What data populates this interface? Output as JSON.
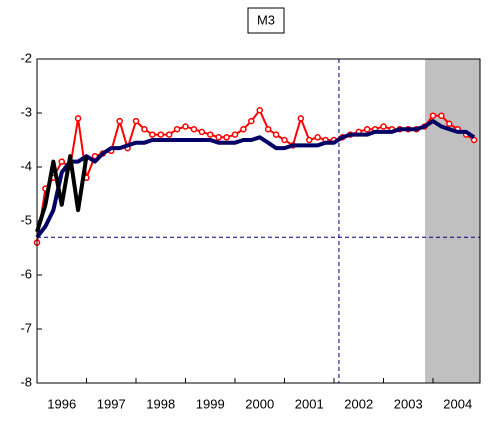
{
  "chart_data": {
    "type": "line",
    "title": "M3",
    "x": [
      1996.0,
      1996.17,
      1996.33,
      1996.5,
      1996.67,
      1996.83,
      1997.0,
      1997.17,
      1997.33,
      1997.5,
      1997.67,
      1997.83,
      1998.0,
      1998.17,
      1998.33,
      1998.5,
      1998.67,
      1998.83,
      1999.0,
      1999.17,
      1999.33,
      1999.5,
      1999.67,
      1999.83,
      2000.0,
      2000.17,
      2000.33,
      2000.5,
      2000.67,
      2000.83,
      2001.0,
      2001.17,
      2001.33,
      2001.5,
      2001.67,
      2001.83,
      2002.0,
      2002.17,
      2002.33,
      2002.5,
      2002.67,
      2002.83,
      2003.0,
      2003.17,
      2003.33,
      2003.5,
      2003.67,
      2003.83,
      2004.0,
      2004.17,
      2004.33,
      2004.5,
      2004.67,
      2004.83
    ],
    "series": [
      {
        "color": "#ff0000",
        "markers": true,
        "width": 2,
        "values": [
          -5.4,
          -4.4,
          -4.2,
          -3.9,
          -4.0,
          -3.1,
          -4.2,
          -3.8,
          -3.75,
          -3.7,
          -3.15,
          -3.65,
          -3.15,
          -3.3,
          -3.4,
          -3.4,
          -3.4,
          -3.3,
          -3.25,
          -3.3,
          -3.35,
          -3.4,
          -3.45,
          -3.45,
          -3.4,
          -3.3,
          -3.15,
          -2.95,
          -3.3,
          -3.4,
          -3.5,
          -3.6,
          -3.1,
          -3.5,
          -3.45,
          -3.5,
          -3.5,
          -3.45,
          -3.4,
          -3.35,
          -3.3,
          -3.3,
          -3.25,
          -3.3,
          -3.3,
          -3.3,
          -3.3,
          -3.25,
          -3.05,
          -3.05,
          -3.2,
          -3.3,
          -3.4,
          -3.5
        ]
      },
      {
        "color": "#000066",
        "markers": false,
        "width": 4,
        "values": [
          -5.3,
          -5.1,
          -4.8,
          -4.1,
          -3.9,
          -3.9,
          -3.8,
          -3.9,
          -3.75,
          -3.65,
          -3.65,
          -3.6,
          -3.55,
          -3.55,
          -3.5,
          -3.5,
          -3.5,
          -3.5,
          -3.5,
          -3.5,
          -3.5,
          -3.5,
          -3.55,
          -3.55,
          -3.55,
          -3.5,
          -3.5,
          -3.45,
          -3.55,
          -3.65,
          -3.65,
          -3.6,
          -3.6,
          -3.6,
          -3.6,
          -3.55,
          -3.55,
          -3.45,
          -3.4,
          -3.4,
          -3.4,
          -3.35,
          -3.35,
          -3.35,
          -3.3,
          -3.3,
          -3.3,
          -3.25,
          -3.15,
          -3.25,
          -3.3,
          -3.35,
          -3.35,
          -3.45
        ]
      },
      {
        "color": "#000000",
        "markers": false,
        "width": 4,
        "values": [
          -5.2,
          -4.7,
          -3.9,
          -4.7,
          -3.8,
          -4.8,
          -3.8,
          null,
          null,
          null,
          null,
          null,
          null,
          null,
          null,
          null,
          null,
          null,
          null,
          null,
          null,
          null,
          null,
          null,
          null,
          null,
          null,
          null,
          null,
          null,
          null,
          null,
          null,
          null,
          null,
          null,
          null,
          null,
          null,
          null,
          null,
          null,
          null,
          null,
          null,
          null,
          null,
          null,
          null,
          null,
          null,
          null,
          null,
          null
        ]
      }
    ],
    "xlim": [
      1996,
      2004.95
    ],
    "xticks": [
      1996,
      1997,
      1998,
      1999,
      2000,
      2001,
      2002,
      2003,
      2004
    ],
    "ylim": [
      -8,
      -2
    ],
    "yticks": [
      -2,
      -3,
      -4,
      -5,
      -6,
      -7,
      -8
    ],
    "shaded_region": [
      2003.84,
      2004.95
    ],
    "shade_color": "#c0c0c0",
    "hline": -5.3,
    "vline": 2002.1,
    "ref_color": "#000080"
  }
}
